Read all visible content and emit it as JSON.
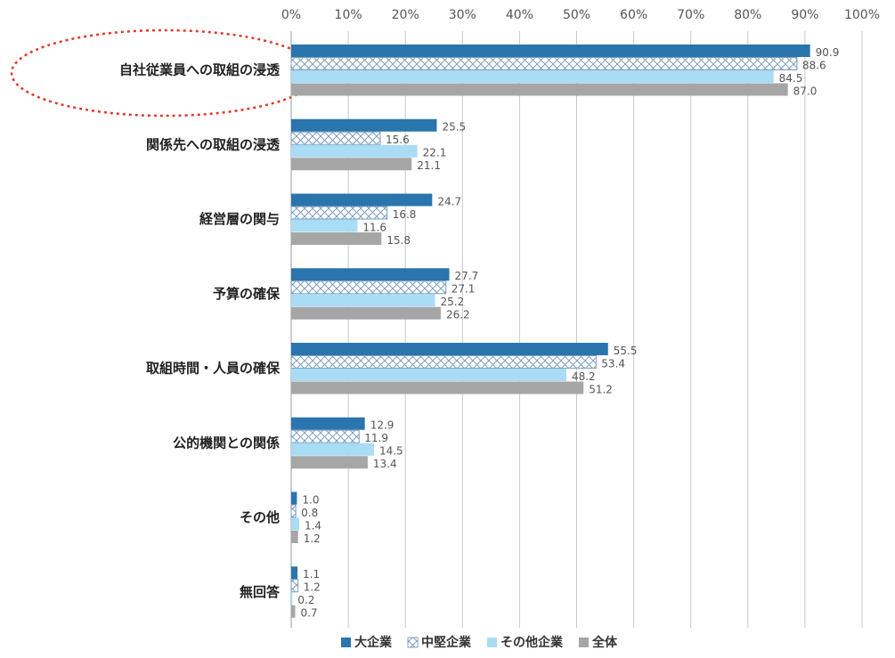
{
  "chart_data": {
    "type": "bar",
    "orientation": "horizontal",
    "categories": [
      "自社従業員への取組の浸透",
      "関係先への取組の浸透",
      "経営層の関与",
      "予算の確保",
      "取組時間・人員の確保",
      "公的機関との関係",
      "その他",
      "無回答"
    ],
    "series": [
      {
        "name": "大企業",
        "color": "#2a75ad",
        "values": [
          90.9,
          25.5,
          24.7,
          27.7,
          55.5,
          12.9,
          1.0,
          1.1
        ],
        "value_labels": [
          "90.9",
          "25.5",
          "24.7",
          "27.7",
          "55.5",
          "12.9",
          "1.0",
          "1.1"
        ]
      },
      {
        "name": "中堅企業",
        "color": "#7f9fc0",
        "pattern": "crosshatch",
        "values": [
          88.6,
          15.6,
          16.8,
          27.1,
          53.4,
          11.9,
          0.8,
          1.2
        ],
        "value_labels": [
          "88.6",
          "15.6",
          "16.8",
          "27.1",
          "53.4",
          "11.9",
          "0.8",
          "1.2"
        ]
      },
      {
        "name": "その他企業",
        "color": "#a9dcf5",
        "values": [
          84.5,
          22.1,
          11.6,
          25.2,
          48.2,
          14.5,
          1.4,
          0.2
        ],
        "value_labels": [
          "84.5",
          "22.1",
          "11.6",
          "25.2",
          "48.2",
          "14.5",
          "1.4",
          "0.2"
        ]
      },
      {
        "name": "全体",
        "color": "#a6a6a6",
        "values": [
          87.0,
          21.1,
          15.8,
          26.2,
          51.2,
          13.4,
          1.2,
          0.7
        ],
        "value_labels": [
          "87.0",
          "21.1",
          "15.8",
          "26.2",
          "51.2",
          "13.4",
          "1.2",
          "0.7"
        ]
      }
    ],
    "xlim": [
      0,
      100
    ],
    "xticks": [
      {
        "value": 0,
        "label": "0%"
      },
      {
        "value": 10,
        "label": "10%"
      },
      {
        "value": 20,
        "label": "20%"
      },
      {
        "value": 30,
        "label": "30%"
      },
      {
        "value": 40,
        "label": "40%"
      },
      {
        "value": 50,
        "label": "50%"
      },
      {
        "value": 60,
        "label": "60%"
      },
      {
        "value": 70,
        "label": "70%"
      },
      {
        "value": 80,
        "label": "80%"
      },
      {
        "value": 90,
        "label": "90%"
      },
      {
        "value": 100,
        "label": "100%"
      }
    ],
    "grid": true,
    "legend": "bottom"
  }
}
